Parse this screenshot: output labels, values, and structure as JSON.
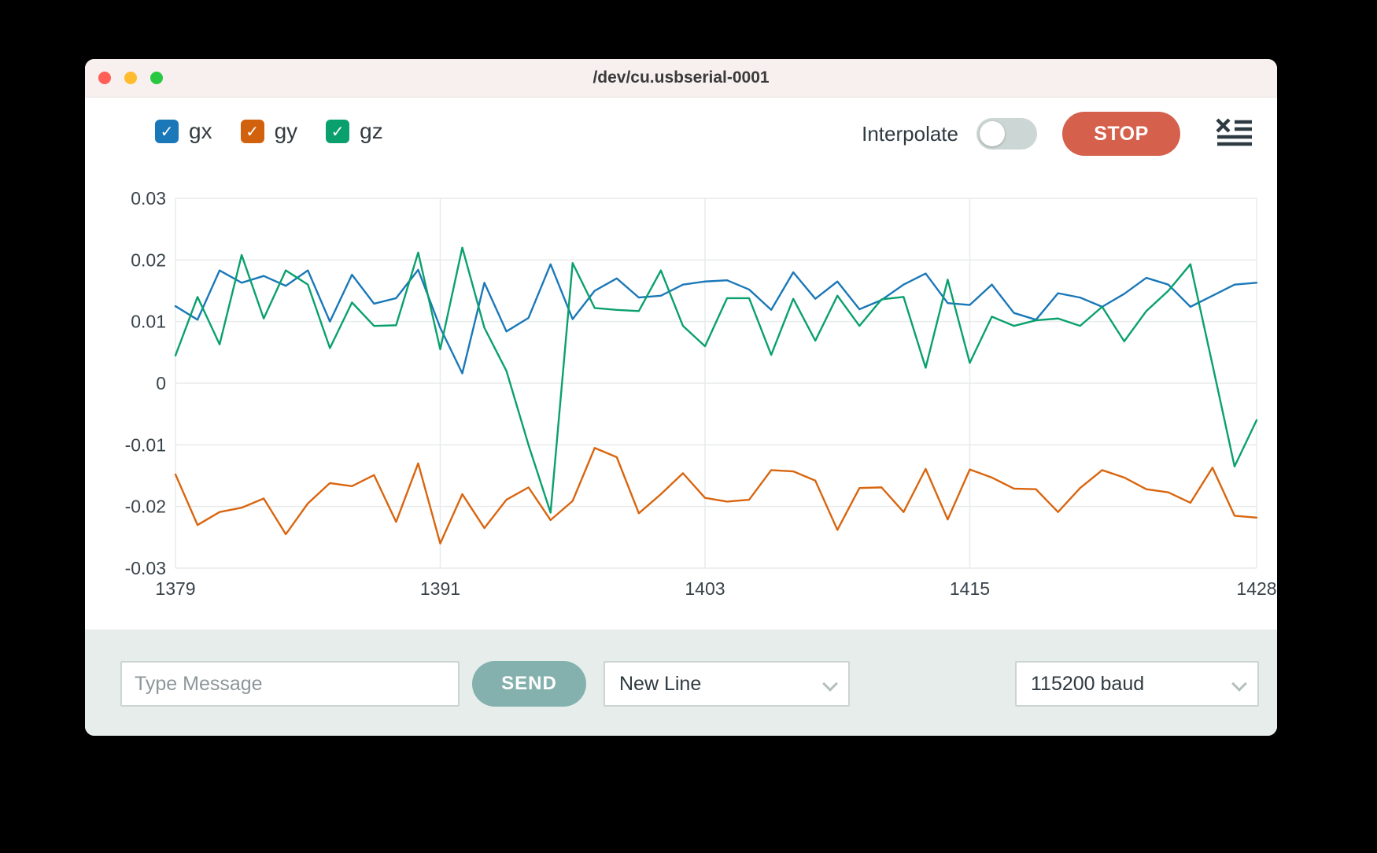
{
  "window": {
    "title": "/dev/cu.usbserial-0001",
    "traffic_lights": {
      "close": "#ff5f57",
      "minimize": "#febc2e",
      "zoom": "#28c840"
    }
  },
  "icons": {
    "check": "✓"
  },
  "legend": {
    "items": [
      {
        "label": "gx",
        "color": "#1a78b8",
        "checked": true
      },
      {
        "label": "gy",
        "color": "#d2610e",
        "checked": true
      },
      {
        "label": "gz",
        "color": "#0aa06d",
        "checked": true
      }
    ]
  },
  "controls": {
    "interpolate_label": "Interpolate",
    "interpolate_on": false,
    "stop_label": "STOP",
    "stop_color": "#d5604c"
  },
  "chart_data": {
    "type": "line",
    "title": "",
    "xlabel": "",
    "ylabel": "",
    "xlim": [
      1379,
      1428
    ],
    "ylim": [
      -0.03,
      0.03
    ],
    "x_ticks": [
      1379,
      1391,
      1403,
      1415,
      1428
    ],
    "y_ticks": [
      0.03,
      0.02,
      0.01,
      0,
      -0.01,
      -0.02,
      -0.03
    ],
    "grid": true,
    "grid_color": "#e7ebea",
    "legend_position": "top-left-checkboxes",
    "x_start": 1379,
    "x_step": 1,
    "series": [
      {
        "name": "gx",
        "color": "#1a78b8",
        "values": [
          0.0125,
          0.0103,
          0.0183,
          0.0163,
          0.0174,
          0.0158,
          0.0183,
          0.01,
          0.0176,
          0.0129,
          0.0138,
          0.0184,
          0.009,
          0.0016,
          0.0163,
          0.0084,
          0.0106,
          0.0193,
          0.0104,
          0.015,
          0.017,
          0.0139,
          0.0142,
          0.016,
          0.0165,
          0.0167,
          0.0152,
          0.0119,
          0.018,
          0.0137,
          0.0165,
          0.012,
          0.0135,
          0.016,
          0.0178,
          0.013,
          0.0127,
          0.016,
          0.0114,
          0.0103,
          0.0146,
          0.0139,
          0.0124,
          0.0145,
          0.0171,
          0.016,
          0.0124,
          0.0142,
          0.016,
          0.0163
        ]
      },
      {
        "name": "gy",
        "color": "#d9650f",
        "values": [
          -0.0148,
          -0.023,
          -0.0209,
          -0.0202,
          -0.0187,
          -0.0245,
          -0.0195,
          -0.0162,
          -0.0167,
          -0.0149,
          -0.0225,
          -0.013,
          -0.026,
          -0.018,
          -0.0235,
          -0.0189,
          -0.0169,
          -0.0222,
          -0.0191,
          -0.0105,
          -0.012,
          -0.0211,
          -0.018,
          -0.0146,
          -0.0186,
          -0.0192,
          -0.0189,
          -0.0141,
          -0.0143,
          -0.0158,
          -0.0238,
          -0.017,
          -0.0169,
          -0.0209,
          -0.0139,
          -0.0221,
          -0.014,
          -0.0153,
          -0.0171,
          -0.0172,
          -0.0209,
          -0.017,
          -0.0141,
          -0.0153,
          -0.0172,
          -0.0177,
          -0.0194,
          -0.0137,
          -0.0215,
          -0.0218
        ]
      },
      {
        "name": "gz",
        "color": "#0aa06d",
        "values": [
          0.0045,
          0.014,
          0.0063,
          0.0208,
          0.0105,
          0.0183,
          0.016,
          0.0057,
          0.0131,
          0.0093,
          0.0094,
          0.0212,
          0.0055,
          0.022,
          0.009,
          0.002,
          -0.01,
          -0.021,
          0.0195,
          0.0122,
          0.0119,
          0.0117,
          0.0183,
          0.0093,
          0.006,
          0.0138,
          0.0138,
          0.0046,
          0.0137,
          0.0069,
          0.0142,
          0.0093,
          0.0136,
          0.014,
          0.0025,
          0.0168,
          0.0033,
          0.0108,
          0.0093,
          0.0102,
          0.0105,
          0.0093,
          0.0124,
          0.0068,
          0.0117,
          0.015,
          0.0193,
          0.003,
          -0.0135,
          -0.006
        ]
      }
    ]
  },
  "bottom_bar": {
    "message_placeholder": "Type Message",
    "send_label": "SEND",
    "send_color": "#84b1ad",
    "line_ending_value": "New Line",
    "baud_value": "115200 baud"
  }
}
